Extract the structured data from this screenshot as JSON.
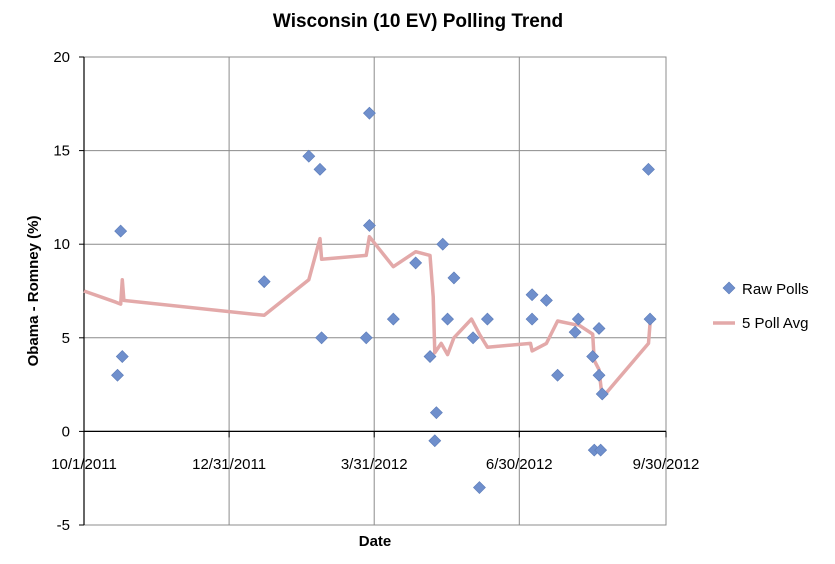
{
  "chart_data": {
    "type": "scatter",
    "title": "Wisconsin (10 EV) Polling Trend",
    "xlabel": "Date",
    "ylabel": "Obama - Romney (%)",
    "xlim": [
      "2011-10-01",
      "2012-09-30"
    ],
    "ylim": [
      -5,
      20
    ],
    "x_ticks": [
      "10/1/2011",
      "12/31/2011",
      "3/31/2012",
      "6/30/2012",
      "9/30/2012"
    ],
    "y_ticks": [
      -5,
      0,
      5,
      10,
      15,
      20
    ],
    "grid": true,
    "legend_position": "right",
    "series": [
      {
        "name": "Raw Polls",
        "kind": "scatter",
        "color": "#6f8fcc",
        "marker": "diamond",
        "points": [
          {
            "x": "2011-10-22",
            "y": 3
          },
          {
            "x": "2011-10-24",
            "y": 10.7
          },
          {
            "x": "2011-10-25",
            "y": 4
          },
          {
            "x": "2012-01-22",
            "y": 8
          },
          {
            "x": "2012-02-19",
            "y": 14.7
          },
          {
            "x": "2012-02-26",
            "y": 14
          },
          {
            "x": "2012-02-27",
            "y": 5
          },
          {
            "x": "2012-03-26",
            "y": 5
          },
          {
            "x": "2012-03-28",
            "y": 17
          },
          {
            "x": "2012-03-28",
            "y": 11
          },
          {
            "x": "2012-04-12",
            "y": 6
          },
          {
            "x": "2012-04-26",
            "y": 9
          },
          {
            "x": "2012-05-05",
            "y": 4
          },
          {
            "x": "2012-05-08",
            "y": -0.5
          },
          {
            "x": "2012-05-09",
            "y": 1
          },
          {
            "x": "2012-05-13",
            "y": 10
          },
          {
            "x": "2012-05-16",
            "y": 6
          },
          {
            "x": "2012-05-20",
            "y": 8.2
          },
          {
            "x": "2012-06-01",
            "y": 5
          },
          {
            "x": "2012-06-05",
            "y": -3
          },
          {
            "x": "2012-06-10",
            "y": 6
          },
          {
            "x": "2012-07-08",
            "y": 7.3
          },
          {
            "x": "2012-07-08",
            "y": 6
          },
          {
            "x": "2012-07-17",
            "y": 7
          },
          {
            "x": "2012-07-24",
            "y": 3
          },
          {
            "x": "2012-08-04",
            "y": 5.3
          },
          {
            "x": "2012-08-06",
            "y": 6
          },
          {
            "x": "2012-08-15",
            "y": 4
          },
          {
            "x": "2012-08-16",
            "y": -1
          },
          {
            "x": "2012-08-19",
            "y": 3
          },
          {
            "x": "2012-08-19",
            "y": 5.5
          },
          {
            "x": "2012-08-20",
            "y": -1
          },
          {
            "x": "2012-08-21",
            "y": 2
          },
          {
            "x": "2012-09-19",
            "y": 14
          },
          {
            "x": "2012-09-20",
            "y": 6
          }
        ]
      },
      {
        "name": "5 Poll Avg",
        "kind": "line",
        "color": "#e3a9a9",
        "points": [
          {
            "x": "2011-10-01",
            "y": 7.5
          },
          {
            "x": "2011-10-21",
            "y": 6.9
          },
          {
            "x": "2011-10-24",
            "y": 6.8
          },
          {
            "x": "2011-10-25",
            "y": 8.1
          },
          {
            "x": "2011-10-26",
            "y": 7
          },
          {
            "x": "2012-01-22",
            "y": 6.2
          },
          {
            "x": "2012-02-19",
            "y": 8.1
          },
          {
            "x": "2012-02-26",
            "y": 10.3
          },
          {
            "x": "2012-02-27",
            "y": 9.2
          },
          {
            "x": "2012-03-26",
            "y": 9.4
          },
          {
            "x": "2012-03-28",
            "y": 10.4
          },
          {
            "x": "2012-04-12",
            "y": 8.8
          },
          {
            "x": "2012-04-26",
            "y": 9.6
          },
          {
            "x": "2012-05-05",
            "y": 9.4
          },
          {
            "x": "2012-05-07",
            "y": 7.2
          },
          {
            "x": "2012-05-08",
            "y": 4.2
          },
          {
            "x": "2012-05-12",
            "y": 4.7
          },
          {
            "x": "2012-05-16",
            "y": 4.1
          },
          {
            "x": "2012-05-20",
            "y": 5
          },
          {
            "x": "2012-05-31",
            "y": 6
          },
          {
            "x": "2012-06-05",
            "y": 5.2
          },
          {
            "x": "2012-06-10",
            "y": 4.5
          },
          {
            "x": "2012-07-07",
            "y": 4.7
          },
          {
            "x": "2012-07-08",
            "y": 4.3
          },
          {
            "x": "2012-07-17",
            "y": 4.7
          },
          {
            "x": "2012-07-24",
            "y": 5.9
          },
          {
            "x": "2012-08-04",
            "y": 5.7
          },
          {
            "x": "2012-08-06",
            "y": 5.7
          },
          {
            "x": "2012-08-15",
            "y": 5.2
          },
          {
            "x": "2012-08-16",
            "y": 3.8
          },
          {
            "x": "2012-08-19",
            "y": 3.3
          },
          {
            "x": "2012-08-21",
            "y": 1.8
          },
          {
            "x": "2012-09-19",
            "y": 4.7
          },
          {
            "x": "2012-09-20",
            "y": 5.8
          }
        ]
      }
    ]
  }
}
